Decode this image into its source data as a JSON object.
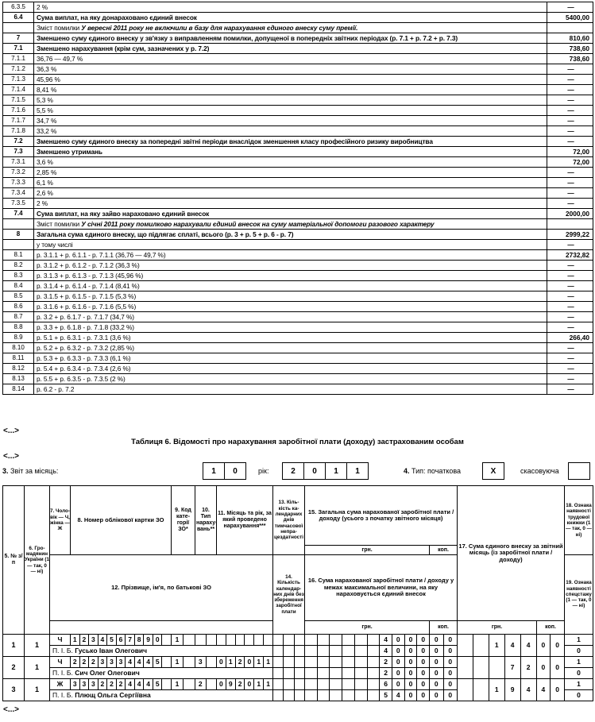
{
  "ellipsis": "<...>",
  "top_table": {
    "rows": [
      {
        "num": "6.3.5",
        "label": "2 %",
        "value": "—",
        "vc": "c"
      },
      {
        "num": "6.4",
        "label": "Сума виплат, на яку донараховано єдиний внесок",
        "value": "5400,00",
        "cls": "b"
      },
      {
        "num": "",
        "label": "Зміст помилки ",
        "em": "У вересні 2011 року не включили в базу для нарахування єдиного внеску суму премії.",
        "value": ""
      },
      {
        "num": "7",
        "label": "Зменшено суму єдиного внеску у зв'язку з виправленням помилки, допущеної в попередніх звітних періодах (р. 7.1 + р. 7.2 + р. 7.3)",
        "value": "810,60",
        "cls": "b"
      },
      {
        "num": "7.1",
        "label": "Зменшено нарахування (крім сум, зазначених у р. 7.2)",
        "value": "738,60",
        "cls": "b"
      },
      {
        "num": "7.1.1",
        "label": "36,76 — 49,7 %",
        "value": "738,60"
      },
      {
        "num": "7.1.2",
        "label": "36,3 %",
        "value": "—",
        "vc": "c"
      },
      {
        "num": "7.1.3",
        "label": "45,96 %",
        "value": "—",
        "vc": "c"
      },
      {
        "num": "7.1.4",
        "label": "8,41 %",
        "value": "—",
        "vc": "c"
      },
      {
        "num": "7.1.5",
        "label": "5,3 %",
        "value": "—",
        "vc": "c"
      },
      {
        "num": "7.1.6",
        "label": "5,5 %",
        "value": "—",
        "vc": "c"
      },
      {
        "num": "7.1.7",
        "label": "34,7 %",
        "value": "—",
        "vc": "c"
      },
      {
        "num": "7.1.8",
        "label": "33,2 %",
        "value": "—",
        "vc": "c"
      },
      {
        "num": "7.2",
        "label": "Зменшено суму єдиного внеску за попередні звітні періоди внаслідок зменшення класу професійного ризику виробництва",
        "value": "—",
        "vc": "c",
        "cls": "b"
      },
      {
        "num": "7.3",
        "label": "Зменшено утримань",
        "value": "72,00",
        "cls": "b"
      },
      {
        "num": "7.3.1",
        "label": "3,6 %",
        "value": "72,00"
      },
      {
        "num": "7.3.2",
        "label": "2,85 %",
        "value": "—",
        "vc": "c"
      },
      {
        "num": "7.3.3",
        "label": "6,1 %",
        "value": "—",
        "vc": "c"
      },
      {
        "num": "7.3.4",
        "label": "2,6 %",
        "value": "—",
        "vc": "c"
      },
      {
        "num": "7.3.5",
        "label": "2 %",
        "value": "—",
        "vc": "c"
      },
      {
        "num": "7.4",
        "label": "Сума виплат, на яку зайво нараховано єдиний внесок",
        "value": "2000,00",
        "cls": "b"
      },
      {
        "num": "",
        "label": "Зміст помилки ",
        "em": "У січні 2011 року помилково нарахували єдиний внесок на суму матеріальної допомоги разового характеру",
        "value": ""
      },
      {
        "num": "8",
        "label": "Загальна сума єдиного внеску, що підлягає сплаті, всього (р. 3 + р. 5 + р. 6 - р. 7)",
        "value": "2999,22",
        "cls": "b"
      },
      {
        "num": "",
        "label": "у тому числі",
        "value": "—",
        "vc": "c"
      },
      {
        "num": "8.1",
        "label": "р. 3.1.1 + р. 6.1.1 - р. 7.1.1 (36,76 — 49,7 %)",
        "value": "2732,82"
      },
      {
        "num": "8.2",
        "label": "р. 3.1.2 + р. 6.1.2 - р. 7.1.2 (36,3 %)",
        "value": "—",
        "vc": "c"
      },
      {
        "num": "8.3",
        "label": "р. 3.1.3 + р. 6.1.3 - р. 7.1.3 (45,96 %)",
        "value": "—",
        "vc": "c"
      },
      {
        "num": "8.4",
        "label": "р. 3.1.4 + р. 6.1.4 - р. 7.1.4 (8,41 %)",
        "value": "—",
        "vc": "c"
      },
      {
        "num": "8.5",
        "label": "р. 3.1.5 + р. 6.1.5 - р. 7.1.5 (5,3 %)",
        "value": "—",
        "vc": "c"
      },
      {
        "num": "8.6",
        "label": "р. 3.1.6 + р. 6.1.6 - р. 7.1.6 (5,5 %)",
        "value": "—",
        "vc": "c"
      },
      {
        "num": "8.7",
        "label": "р. 3.2 + р. 6.1.7 - р. 7.1.7 (34,7 %)",
        "value": "—",
        "vc": "c"
      },
      {
        "num": "8.8",
        "label": "р. 3.3 + р. 6.1.8 - р. 7.1.8 (33,2 %)",
        "value": "—",
        "vc": "c"
      },
      {
        "num": "8.9",
        "label": "р. 5.1 + р. 6.3.1 - р. 7.3.1 (3,6 %)",
        "value": "266,40"
      },
      {
        "num": "8.10",
        "label": "р. 5.2 + р. 6.3.2 - р. 7.3.2 (2,85 %)",
        "value": "—",
        "vc": "c"
      },
      {
        "num": "8.11",
        "label": "р. 5.3 + р. 6.3.3 - р. 7.3.3 (6,1 %)",
        "value": "—",
        "vc": "c"
      },
      {
        "num": "8.12",
        "label": "р. 5.4 + р. 6.3.4 - р. 7.3.4 (2,6 %)",
        "value": "—",
        "vc": "c"
      },
      {
        "num": "8.13",
        "label": "р. 5.5 + р. 6.3.5 - р. 7.3.5 (2 %)",
        "value": "—",
        "vc": "c"
      },
      {
        "num": "8.14",
        "label": "р. 6.2 - р. 7.2",
        "value": "—",
        "vc": "c"
      }
    ]
  },
  "table6": {
    "title": "Таблиця 6. Відомості про нарахування заробітної плати (доходу) застрахованим особам",
    "form": {
      "label3_num": "3.",
      "label3": " Звіт за місяць:",
      "month_boxes": [
        "1",
        "0"
      ],
      "year_label": "рік:",
      "year_boxes": [
        "2",
        "0",
        "1",
        "1"
      ],
      "label4_num": "4.",
      "label4": " Тип: початкова",
      "initial_boxes": [
        "X"
      ],
      "cancel_label": "скасовуюча",
      "cancel_boxes": [
        ""
      ]
    },
    "header": {
      "h5": "5. № з/п",
      "h6": "6. Гро­мадянин України (1 — так, 0 — ні)",
      "h7": "7. Чо­ло­вік — Ч, жін­ка — Ж",
      "h8": "8. Номер облікової картки ЗО",
      "h9": "9. Код кате­горії ЗО*",
      "h10": "10. Тип нараху­вань**",
      "h11": "11. Місяць та рік, за який проведено нарахування***",
      "h12": "12. Прізвище, ім'я, по батькові ЗО",
      "h13": "13. Кіль­кість ка­лендар­них днів тимчасо­вої непра­цездат­ності",
      "h14": "14. Кількість календар­них днів без збе­реження заробітної плати",
      "h15": "15. Загальна сума нарахованої заробітної плати / до­ходу (усього з початку звітного місяця)",
      "h16": "16. Сума нарахованої заробітної плати / доходу у ме­жах максимальної величини, на яку нараховується єдиний внесок",
      "h17": "17. Сума єдиного внеску за звітний місяць (із заробітної плати / доходу)",
      "h18": "18. Ознака наявності трудової книжки (1 — так, 0 — ні)",
      "h19": "19. Ознака наявності спец­стажу (1 — так, 0 — ні)",
      "hrn": "грн.",
      "kop": "коп."
    },
    "persons": [
      {
        "num": "1",
        "citizen": "1",
        "gender": "Ч",
        "card_boxes": [
          "1",
          "2",
          "3",
          "4",
          "5",
          "6",
          "7",
          "8",
          "9",
          "0",
          ""
        ],
        "category_boxes": [
          "1",
          ""
        ],
        "type_boxes": [
          "",
          ""
        ],
        "month_year_boxes": [
          "",
          "",
          "",
          "",
          "",
          ""
        ],
        "sick_days_boxes": [
          "",
          "",
          ""
        ],
        "salary_total_hrn_boxes": [
          "",
          "",
          "",
          "",
          "",
          "",
          "4",
          "0",
          "0",
          "0"
        ],
        "salary_total_kop_boxes": [
          "0",
          "0"
        ],
        "pib": "П. І. Б. ",
        "name": "Гусько Іван Олегович",
        "unpaid_days_boxes": [
          "",
          "",
          ""
        ],
        "salary_capped_hrn_boxes": [
          "",
          "",
          "",
          "",
          "",
          "",
          "4",
          "0",
          "0",
          "0"
        ],
        "salary_capped_kop_boxes": [
          "0",
          "0"
        ],
        "contribution_hrn_boxes": [
          "",
          "",
          "1",
          "4",
          "4"
        ],
        "contribution_kop_boxes": [
          "0",
          "0"
        ],
        "work_book": "1",
        "special_service": "0"
      },
      {
        "num": "2",
        "citizen": "1",
        "gender": "Ч",
        "card_boxes": [
          "2",
          "2",
          "2",
          "3",
          "3",
          "3",
          "4",
          "4",
          "4",
          "5",
          ""
        ],
        "category_boxes": [
          "1",
          ""
        ],
        "type_boxes": [
          "3",
          ""
        ],
        "month_year_boxes": [
          "0",
          "1",
          "2",
          "0",
          "1",
          "1"
        ],
        "sick_days_boxes": [
          "",
          "",
          ""
        ],
        "salary_total_hrn_boxes": [
          "",
          "",
          "",
          "",
          "",
          "",
          "2",
          "0",
          "0",
          "0"
        ],
        "salary_total_kop_boxes": [
          "0",
          "0"
        ],
        "pib": "П. І. Б. ",
        "name": "Сич Олег Олегович",
        "unpaid_days_boxes": [
          "",
          "",
          ""
        ],
        "salary_capped_hrn_boxes": [
          "",
          "",
          "",
          "",
          "",
          "",
          "2",
          "0",
          "0",
          "0"
        ],
        "salary_capped_kop_boxes": [
          "0",
          "0"
        ],
        "contribution_hrn_boxes": [
          "",
          "",
          "",
          "7",
          "2"
        ],
        "contribution_kop_boxes": [
          "0",
          "0"
        ],
        "work_book": "1",
        "special_service": "0"
      },
      {
        "num": "3",
        "citizen": "1",
        "gender": "Ж",
        "card_boxes": [
          "3",
          "3",
          "3",
          "2",
          "2",
          "2",
          "4",
          "4",
          "4",
          "5",
          ""
        ],
        "category_boxes": [
          "1",
          ""
        ],
        "type_boxes": [
          "2",
          ""
        ],
        "month_year_boxes": [
          "0",
          "9",
          "2",
          "0",
          "1",
          "1"
        ],
        "sick_days_boxes": [
          "",
          "",
          ""
        ],
        "salary_total_hrn_boxes": [
          "",
          "",
          "",
          "",
          "",
          "",
          "6",
          "0",
          "0",
          "0"
        ],
        "salary_total_kop_boxes": [
          "0",
          "0"
        ],
        "pib": "П. І. Б. ",
        "name": "Плющ Ольга Сергіївна",
        "unpaid_days_boxes": [
          "",
          "",
          ""
        ],
        "salary_capped_hrn_boxes": [
          "",
          "",
          "",
          "",
          "",
          "",
          "5",
          "4",
          "0",
          "0"
        ],
        "salary_capped_kop_boxes": [
          "0",
          "0"
        ],
        "contribution_hrn_boxes": [
          "",
          "",
          "1",
          "9",
          "4"
        ],
        "contribution_kop_boxes": [
          "4",
          "0"
        ],
        "work_book": "1",
        "special_service": "0"
      }
    ]
  }
}
